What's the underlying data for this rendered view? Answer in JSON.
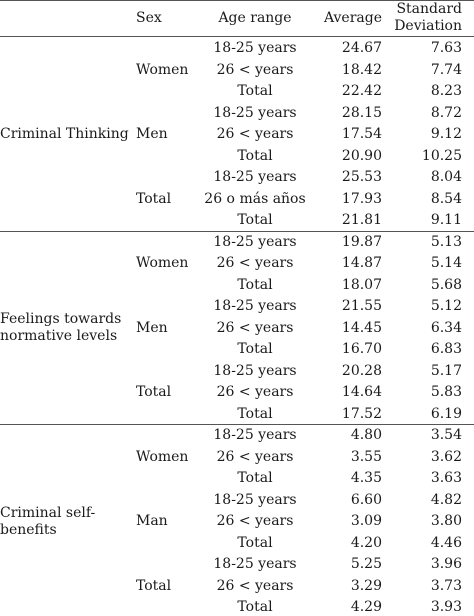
{
  "header": {
    "sex": "Sex",
    "age_range": "Age range",
    "average": "Average",
    "sd_line1": "Standard",
    "sd_line2": "Deviation"
  },
  "sections": [
    {
      "label_lines": [
        "Criminal Thinking"
      ],
      "groups": [
        {
          "sex": "Women",
          "rows": [
            {
              "age": "18-25 years",
              "avg": "24.67",
              "sd": "7.63"
            },
            {
              "age": "26 < years",
              "avg": "18.42",
              "sd": "7.74"
            },
            {
              "age": "Total",
              "avg": "22.42",
              "sd": "8.23"
            }
          ]
        },
        {
          "sex": "Men",
          "rows": [
            {
              "age": "18-25 years",
              "avg": "28.15",
              "sd": "8.72"
            },
            {
              "age": "26 < years",
              "avg": "17.54",
              "sd": "9.12"
            },
            {
              "age": "Total",
              "avg": "20.90",
              "sd": "10.25"
            }
          ]
        },
        {
          "sex": "Total",
          "rows": [
            {
              "age": "18-25 years",
              "avg": "25.53",
              "sd": "8.04"
            },
            {
              "age": "26 o más años",
              "avg": "17.93",
              "sd": "8.54"
            },
            {
              "age": "Total",
              "avg": "21.81",
              "sd": "9.11"
            }
          ]
        }
      ]
    },
    {
      "label_lines": [
        "Feelings towards",
        "normative levels"
      ],
      "groups": [
        {
          "sex": "Women",
          "rows": [
            {
              "age": "18-25 years",
              "avg": "19.87",
              "sd": "5.13"
            },
            {
              "age": "26 < years",
              "avg": "14.87",
              "sd": "5.14"
            },
            {
              "age": "Total",
              "avg": "18.07",
              "sd": "5.68"
            }
          ]
        },
        {
          "sex": "Men",
          "rows": [
            {
              "age": "18-25 years",
              "avg": "21.55",
              "sd": "5.12"
            },
            {
              "age": "26 < years",
              "avg": "14.45",
              "sd": "6.34"
            },
            {
              "age": "Total",
              "avg": "16.70",
              "sd": "6.83"
            }
          ]
        },
        {
          "sex": "Total",
          "rows": [
            {
              "age": "18-25 years",
              "avg": "20.28",
              "sd": "5.17"
            },
            {
              "age": "26 < years",
              "avg": "14.64",
              "sd": "5.83"
            },
            {
              "age": "Total",
              "avg": "17.52",
              "sd": "6.19"
            }
          ]
        }
      ]
    },
    {
      "label_lines": [
        "Criminal self-",
        "benefits"
      ],
      "groups": [
        {
          "sex": "Women",
          "rows": [
            {
              "age": "18-25 years",
              "avg": "4.80",
              "sd": "3.54"
            },
            {
              "age": "26 < years",
              "avg": "3.55",
              "sd": "3.62"
            },
            {
              "age": "Total",
              "avg": "4.35",
              "sd": "3.63"
            }
          ]
        },
        {
          "sex": "Man",
          "rows": [
            {
              "age": "18-25 years",
              "avg": "6.60",
              "sd": "4.82"
            },
            {
              "age": "26 < years",
              "avg": "3.09",
              "sd": "3.80"
            },
            {
              "age": "Total",
              "avg": "4.20",
              "sd": "4.46"
            }
          ]
        },
        {
          "sex": "Total",
          "rows": [
            {
              "age": "18-25 years",
              "avg": "5.25",
              "sd": "3.96"
            },
            {
              "age": "26 < years",
              "avg": "3.29",
              "sd": "3.73"
            },
            {
              "age": "Total",
              "avg": "4.29",
              "sd": "3.93"
            }
          ]
        }
      ]
    }
  ]
}
